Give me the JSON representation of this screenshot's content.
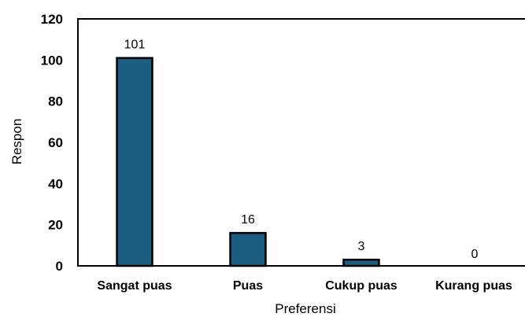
{
  "chart_data": {
    "type": "bar",
    "categories": [
      "Sangat puas",
      "Puas",
      "Cukup puas",
      "Kurang puas"
    ],
    "values": [
      101,
      16,
      3,
      0
    ],
    "data_labels": [
      "101",
      "16",
      "3",
      "0"
    ],
    "xlabel": "Preferensi",
    "ylabel": "Respon",
    "ylim": [
      0,
      120
    ],
    "yticks": [
      0,
      20,
      40,
      60,
      80,
      100,
      120
    ],
    "ytick_labels": [
      "0",
      "20",
      "40",
      "60",
      "80",
      "100",
      "120"
    ],
    "grid": false,
    "bar_color": "#1b5e82",
    "bar_edge_color": "#000000"
  }
}
